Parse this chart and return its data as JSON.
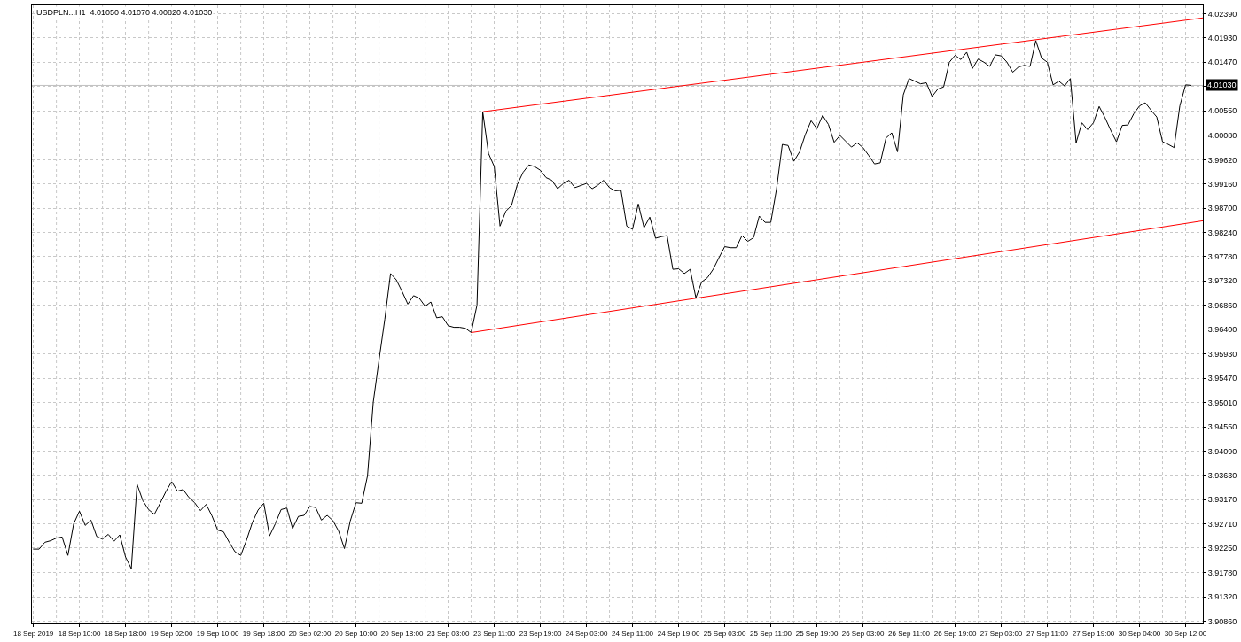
{
  "chart_data": {
    "type": "line",
    "title": "USDPLN...H1  4.01050 4.01070 4.00820 4.01030",
    "categories": [
      "18 Sep 2019",
      null,
      null,
      null,
      null,
      null,
      null,
      null,
      "18 Sep 10:00",
      null,
      null,
      null,
      null,
      null,
      null,
      null,
      "18 Sep 18:00",
      null,
      null,
      null,
      null,
      null,
      null,
      null,
      "19 Sep 02:00",
      null,
      null,
      null,
      null,
      null,
      null,
      null,
      "19 Sep 10:00",
      null,
      null,
      null,
      null,
      null,
      null,
      null,
      "19 Sep 18:00",
      null,
      null,
      null,
      null,
      null,
      null,
      null,
      "20 Sep 02:00",
      null,
      null,
      null,
      null,
      null,
      null,
      null,
      "20 Sep 10:00",
      null,
      null,
      null,
      null,
      null,
      null,
      null,
      "20 Sep 18:00",
      null,
      null,
      null,
      null,
      null,
      null,
      null,
      "23 Sep 03:00",
      null,
      null,
      null,
      null,
      null,
      null,
      null,
      "23 Sep 11:00",
      null,
      null,
      null,
      null,
      null,
      null,
      null,
      "23 Sep 19:00",
      null,
      null,
      null,
      null,
      null,
      null,
      null,
      "24 Sep 03:00",
      null,
      null,
      null,
      null,
      null,
      null,
      null,
      "24 Sep 11:00",
      null,
      null,
      null,
      null,
      null,
      null,
      null,
      "24 Sep 19:00",
      null,
      null,
      null,
      null,
      null,
      null,
      null,
      "25 Sep 03:00",
      null,
      null,
      null,
      null,
      null,
      null,
      null,
      "25 Sep 11:00",
      null,
      null,
      null,
      null,
      null,
      null,
      null,
      "25 Sep 19:00",
      null,
      null,
      null,
      null,
      null,
      null,
      null,
      "26 Sep 03:00",
      null,
      null,
      null,
      null,
      null,
      null,
      null,
      "26 Sep 11:00",
      null,
      null,
      null,
      null,
      null,
      null,
      null,
      "26 Sep 19:00",
      null,
      null,
      null,
      null,
      null,
      null,
      null,
      "27 Sep 03:00",
      null,
      null,
      null,
      null,
      null,
      null,
      null,
      "27 Sep 11:00",
      null,
      null,
      null,
      null,
      null,
      null,
      null,
      "27 Sep 19:00",
      null,
      null,
      null,
      null,
      null,
      null,
      null,
      "30 Sep 04:00",
      null,
      null,
      null,
      null,
      null,
      null,
      null,
      "30 Sep 12:00",
      null,
      null,
      null
    ],
    "series": [
      {
        "color": "#000000",
        "values": [
          3.9223,
          3.9223,
          3.9236,
          3.9239,
          3.9244,
          3.9246,
          3.9211,
          3.9271,
          3.9295,
          3.9268,
          3.9278,
          3.9247,
          3.9242,
          3.9251,
          3.9238,
          3.925,
          3.9208,
          3.9186,
          3.9346,
          3.9315,
          3.9298,
          3.9289,
          3.931,
          3.9332,
          3.9351,
          3.9333,
          3.9336,
          3.9321,
          3.9311,
          3.9296,
          3.9308,
          3.9286,
          3.9259,
          3.9256,
          3.9236,
          3.9218,
          3.9211,
          3.924,
          3.9273,
          3.9297,
          3.931,
          3.9248,
          3.9271,
          3.9298,
          3.9301,
          3.9262,
          3.9285,
          3.9287,
          3.9304,
          3.9302,
          3.9278,
          3.9287,
          3.9277,
          3.9257,
          3.9224,
          3.9276,
          3.9311,
          3.931,
          3.9362,
          3.9502,
          3.9582,
          3.9659,
          3.9746,
          3.9734,
          3.9712,
          3.9688,
          3.9704,
          3.9699,
          3.9684,
          3.9692,
          3.9662,
          3.9664,
          3.9647,
          3.9644,
          3.9644,
          3.9642,
          3.9634,
          3.9686,
          4.0053,
          3.9974,
          3.9949,
          3.9836,
          3.9864,
          3.9875,
          3.9915,
          3.9938,
          3.9952,
          3.9949,
          3.9942,
          3.9928,
          3.9923,
          3.9907,
          3.9917,
          3.9923,
          3.9909,
          3.9913,
          3.9917,
          3.9907,
          3.9914,
          3.9923,
          3.9909,
          3.9903,
          3.9904,
          3.9836,
          3.983,
          3.9878,
          3.9833,
          3.9853,
          3.9813,
          3.9816,
          3.9818,
          3.9754,
          3.9755,
          3.9746,
          3.9754,
          3.97,
          3.973,
          3.9738,
          3.9754,
          3.9776,
          3.9797,
          3.9795,
          3.9795,
          3.9818,
          3.9807,
          3.9814,
          3.9855,
          3.9843,
          3.9843,
          3.9907,
          3.9991,
          3.9989,
          3.9959,
          3.9977,
          4.001,
          4.0036,
          4.0021,
          4.0046,
          4.0029,
          3.9995,
          4.0008,
          3.9997,
          3.9986,
          3.9994,
          3.9985,
          3.997,
          3.9954,
          3.9956,
          4.0003,
          4.0013,
          3.9977,
          4.0085,
          4.0116,
          4.0111,
          4.0106,
          4.0108,
          4.0082,
          4.0096,
          4.01,
          4.0147,
          4.016,
          4.0152,
          4.0166,
          4.0135,
          4.0153,
          4.0147,
          4.0139,
          4.0161,
          4.0159,
          4.0147,
          4.0128,
          4.0138,
          4.0141,
          4.0139,
          4.0188,
          4.0155,
          4.0147,
          4.0104,
          4.0111,
          4.0102,
          4.0116,
          3.9994,
          4.0032,
          4.0019,
          4.0032,
          4.0063,
          4.0042,
          4.0018,
          3.9996,
          4.0027,
          4.0028,
          4.0049,
          4.0064,
          4.007,
          4.0056,
          4.0043,
          3.9996,
          3.9991,
          3.9985,
          4.0064,
          4.0104,
          4.0103,
          null,
          null
        ]
      },
      {
        "type": "line",
        "color": "#ff0000",
        "values": [
          null,
          null,
          null,
          null,
          null,
          null,
          null,
          null,
          null,
          null,
          null,
          null,
          null,
          null,
          null,
          null,
          null,
          null,
          null,
          null,
          null,
          null,
          null,
          null,
          null,
          null,
          null,
          null,
          null,
          null,
          null,
          null,
          null,
          null,
          null,
          null,
          null,
          null,
          null,
          null,
          null,
          null,
          null,
          null,
          null,
          null,
          null,
          null,
          null,
          null,
          null,
          null,
          null,
          null,
          null,
          null,
          null,
          null,
          null,
          null,
          null,
          null,
          null,
          null,
          null,
          null,
          null,
          null,
          null,
          null,
          null,
          null,
          null,
          null,
          null,
          null,
          null,
          null,
          4.0053,
          null,
          null,
          null,
          null,
          null,
          null,
          null,
          null,
          null,
          null,
          null,
          null,
          null,
          null,
          null,
          null,
          null,
          null,
          null,
          null,
          null,
          null,
          null,
          null,
          null,
          null,
          null,
          null,
          null,
          null,
          null,
          null,
          null,
          null,
          null,
          null,
          null,
          null,
          null,
          null,
          null,
          null,
          null,
          null,
          null,
          null,
          null,
          null,
          null,
          null,
          null,
          null,
          null,
          null,
          null,
          null,
          null,
          null,
          null,
          null,
          null,
          null,
          null,
          null,
          null,
          null,
          null,
          null,
          null,
          null,
          null,
          null,
          null,
          null,
          null,
          null,
          null,
          null,
          null,
          null,
          null,
          null,
          null,
          null,
          null,
          null,
          null,
          null,
          null,
          null,
          null,
          null,
          null,
          null,
          null,
          null,
          null,
          null,
          null,
          null,
          null,
          null,
          null,
          null,
          null,
          null,
          null,
          null,
          null,
          null,
          null,
          null,
          null,
          null,
          null,
          null,
          null,
          null,
          null,
          null,
          null,
          null,
          null,
          null,
          4.0231
        ]
      },
      {
        "type": "line",
        "color": "#ff0000",
        "values": [
          null,
          null,
          null,
          null,
          null,
          null,
          null,
          null,
          null,
          null,
          null,
          null,
          null,
          null,
          null,
          null,
          null,
          null,
          null,
          null,
          null,
          null,
          null,
          null,
          null,
          null,
          null,
          null,
          null,
          null,
          null,
          null,
          null,
          null,
          null,
          null,
          null,
          null,
          null,
          null,
          null,
          null,
          null,
          null,
          null,
          null,
          null,
          null,
          null,
          null,
          null,
          null,
          null,
          null,
          null,
          null,
          null,
          null,
          null,
          null,
          null,
          null,
          null,
          null,
          null,
          null,
          null,
          null,
          null,
          null,
          null,
          null,
          null,
          null,
          null,
          null,
          3.9634,
          null,
          null,
          null,
          null,
          null,
          null,
          null,
          null,
          null,
          null,
          null,
          null,
          null,
          null,
          null,
          null,
          null,
          null,
          null,
          null,
          null,
          null,
          null,
          null,
          null,
          null,
          null,
          null,
          null,
          null,
          null,
          null,
          null,
          null,
          null,
          null,
          null,
          null,
          null,
          null,
          null,
          null,
          null,
          null,
          null,
          null,
          null,
          null,
          null,
          null,
          null,
          null,
          null,
          null,
          null,
          null,
          null,
          null,
          null,
          null,
          null,
          null,
          null,
          null,
          null,
          null,
          null,
          null,
          null,
          null,
          null,
          null,
          null,
          null,
          null,
          null,
          null,
          null,
          null,
          null,
          null,
          null,
          null,
          null,
          null,
          null,
          null,
          null,
          null,
          null,
          null,
          null,
          null,
          null,
          null,
          null,
          null,
          null,
          null,
          null,
          null,
          null,
          null,
          null,
          null,
          null,
          null,
          null,
          null,
          null,
          null,
          null,
          null,
          null,
          null,
          null,
          null,
          null,
          null,
          null,
          null,
          null,
          null,
          null,
          null,
          null,
          3.9846
        ]
      }
    ],
    "ylim": [
      3.9082,
      4.0255
    ],
    "yticks": [
      {
        "value": 4.0239,
        "label": "4.02390"
      },
      {
        "value": 4.0193,
        "label": "4.01930"
      },
      {
        "value": 4.0147,
        "label": "4.01470"
      },
      {
        "value": 4.0101,
        "label": null
      },
      {
        "value": 4.0055,
        "label": "4.00550"
      },
      {
        "value": 4.0008,
        "label": "4.00080"
      },
      {
        "value": 3.9962,
        "label": "3.99620"
      },
      {
        "value": 3.9916,
        "label": "3.99160"
      },
      {
        "value": 3.987,
        "label": "3.98700"
      },
      {
        "value": 3.9824,
        "label": "3.98240"
      },
      {
        "value": 3.9778,
        "label": "3.97780"
      },
      {
        "value": 3.9732,
        "label": "3.97320"
      },
      {
        "value": 3.9686,
        "label": "3.96860"
      },
      {
        "value": 3.964,
        "label": "3.96400"
      },
      {
        "value": 3.9593,
        "label": "3.95930"
      },
      {
        "value": 3.9547,
        "label": "3.95470"
      },
      {
        "value": 3.9501,
        "label": "3.95010"
      },
      {
        "value": 3.9455,
        "label": "3.94550"
      },
      {
        "value": 3.9409,
        "label": "3.94090"
      },
      {
        "value": 3.9363,
        "label": "3.93630"
      },
      {
        "value": 3.9317,
        "label": "3.93170"
      },
      {
        "value": 3.9271,
        "label": "3.92710"
      },
      {
        "value": 3.9225,
        "label": "3.92250"
      },
      {
        "value": 3.9178,
        "label": "3.91780"
      },
      {
        "value": 3.9132,
        "label": "3.91320"
      },
      {
        "value": 3.9086,
        "label": "3.90860"
      }
    ],
    "ref_lines": [
      {
        "axis": "y",
        "value": 4.0103,
        "label": "4.01030",
        "color": "#c0c0c0"
      }
    ],
    "grid": true,
    "marker": "none",
    "line_style": "solid"
  }
}
